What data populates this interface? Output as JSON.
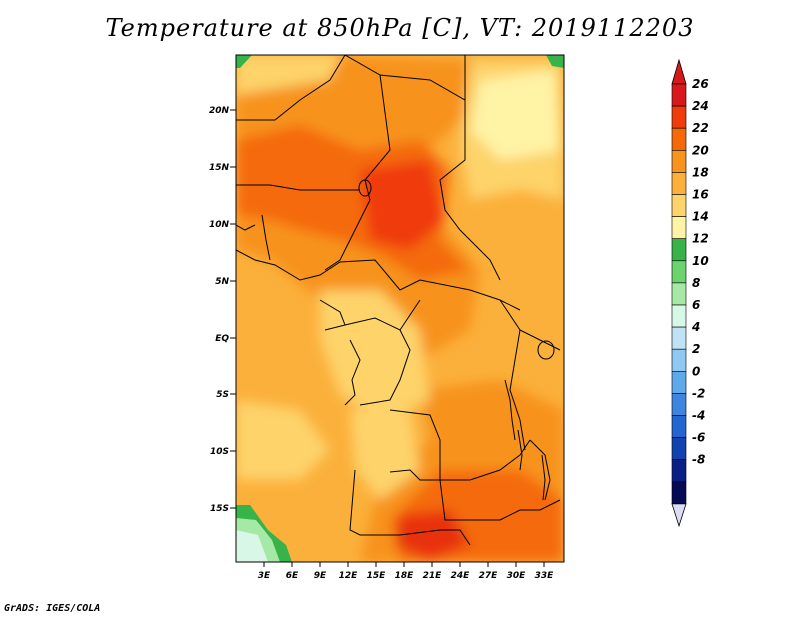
{
  "title": "Temperature at 850hPa [C], VT: 2019112203",
  "footer": "GrADS: IGES/COLA",
  "map": {
    "lat_ticks": [
      "20N",
      "15N",
      "10N",
      "5N",
      "EQ",
      "5S",
      "10S",
      "15S"
    ],
    "lon_ticks": [
      "3E",
      "6E",
      "9E",
      "12E",
      "15E",
      "18E",
      "21E",
      "24E",
      "27E",
      "30E",
      "33E"
    ]
  },
  "colorbar": {
    "labels": [
      "26",
      "24",
      "22",
      "20",
      "18",
      "16",
      "14",
      "12",
      "10",
      "8",
      "6",
      "4",
      "2",
      "0",
      "-2",
      "-4",
      "-6",
      "-8"
    ],
    "colors": [
      "#d7191c",
      "#f03b0b",
      "#f46a0b",
      "#f7931e",
      "#fbb03b",
      "#fdd36b",
      "#fff3a6",
      "#37b34a",
      "#6cd46c",
      "#a6e9a6",
      "#d9f7e6",
      "#bfe3f5",
      "#8fc8f0",
      "#5ea9ea",
      "#3d86df",
      "#2365d1",
      "#1241b0",
      "#0a1f86",
      "#050a55"
    ],
    "top_arrow_color": "#d7191c",
    "bottom_arrow_color": "#dcdcf5"
  }
}
